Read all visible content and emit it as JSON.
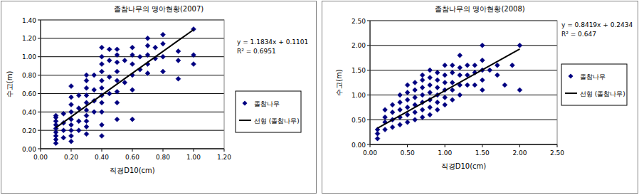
{
  "chart_data": [
    {
      "type": "scatter",
      "title": "졸참나무의 맹아현황(2007)",
      "x_label": "직경D10(cm)",
      "y_label": "수고(m)",
      "xlim": [
        0,
        1.2
      ],
      "xticks": [
        {
          "value": 0,
          "label": "0.00"
        },
        {
          "value": 0.2,
          "label": "0.20"
        },
        {
          "value": 0.4,
          "label": "0.40"
        },
        {
          "value": 0.6,
          "label": "0.60"
        },
        {
          "value": 0.8,
          "label": "0.80"
        },
        {
          "value": 1.0,
          "label": "1.00"
        },
        {
          "value": 1.2,
          "label": "1.20"
        }
      ],
      "ylim": [
        0,
        1.4
      ],
      "yticks": [
        {
          "value": 0,
          "label": "0.00"
        },
        {
          "value": 0.2,
          "label": "0.20"
        },
        {
          "value": 0.4,
          "label": "0.40"
        },
        {
          "value": 0.6,
          "label": "0.60"
        },
        {
          "value": 0.8,
          "label": "0.80"
        },
        {
          "value": 1.0,
          "label": "1.00"
        },
        {
          "value": 1.2,
          "label": "1.20"
        },
        {
          "value": 1.4,
          "label": "1.40"
        }
      ],
      "grid": true,
      "legend": "right",
      "annotations": [
        "y = 1.1834x + 0.1101",
        "R² = 0.6951"
      ],
      "series": [
        {
          "name": "졸참나무",
          "type": "scatter",
          "marker": "diamond",
          "color": "#000080",
          "x": [
            0.1,
            0.1,
            0.1,
            0.1,
            0.1,
            0.1,
            0.1,
            0.1,
            0.1,
            0.15,
            0.15,
            0.15,
            0.15,
            0.2,
            0.2,
            0.2,
            0.2,
            0.2,
            0.2,
            0.2,
            0.2,
            0.2,
            0.25,
            0.25,
            0.25,
            0.25,
            0.3,
            0.3,
            0.3,
            0.3,
            0.3,
            0.3,
            0.3,
            0.3,
            0.3,
            0.3,
            0.35,
            0.35,
            0.35,
            0.35,
            0.4,
            0.4,
            0.4,
            0.4,
            0.4,
            0.4,
            0.4,
            0.4,
            0.4,
            0.4,
            0.4,
            0.45,
            0.45,
            0.45,
            0.45,
            0.5,
            0.5,
            0.5,
            0.5,
            0.5,
            0.5,
            0.5,
            0.5,
            0.55,
            0.55,
            0.6,
            0.6,
            0.6,
            0.6,
            0.6,
            0.6,
            0.65,
            0.65,
            0.7,
            0.7,
            0.7,
            0.7,
            0.7,
            0.75,
            0.75,
            0.8,
            0.8,
            0.8,
            0.8,
            0.9,
            0.9,
            0.9,
            1.0,
            1.0,
            1.0
          ],
          "values": [
            0.06,
            0.1,
            0.14,
            0.18,
            0.22,
            0.26,
            0.3,
            0.34,
            0.36,
            0.12,
            0.2,
            0.28,
            0.38,
            0.08,
            0.14,
            0.2,
            0.26,
            0.32,
            0.4,
            0.48,
            0.56,
            0.68,
            0.2,
            0.3,
            0.44,
            0.58,
            0.16,
            0.24,
            0.3,
            0.36,
            0.42,
            0.5,
            0.58,
            0.66,
            0.74,
            0.8,
            0.4,
            0.52,
            0.64,
            0.8,
            0.14,
            0.26,
            0.4,
            0.5,
            0.58,
            0.66,
            0.74,
            0.84,
            0.92,
            1.0,
            1.1,
            0.6,
            0.78,
            0.96,
            1.08,
            0.32,
            0.5,
            0.62,
            0.74,
            0.84,
            0.94,
            1.02,
            1.08,
            0.72,
            0.96,
            0.32,
            0.64,
            0.8,
            0.92,
            1.02,
            1.1,
            0.86,
            1.0,
            0.82,
            0.92,
            1.02,
            1.12,
            1.2,
            0.98,
            1.1,
            0.84,
            1.0,
            1.14,
            1.24,
            0.76,
            0.96,
            1.06,
            0.92,
            1.02,
            1.3
          ]
        },
        {
          "name": "선형 (졸참나무)",
          "type": "line",
          "line_style": "solid",
          "color": "#000000",
          "x": [
            0.1,
            1.0
          ],
          "values": [
            0.229,
            1.294
          ]
        }
      ]
    },
    {
      "type": "scatter",
      "title": "졸참나무의 맹아현황(2008)",
      "x_label": "직경D10(cm)",
      "y_label": "수고(m)",
      "xlim": [
        0,
        2.5
      ],
      "xticks": [
        {
          "value": 0,
          "label": "0.00"
        },
        {
          "value": 0.5,
          "label": "0.50"
        },
        {
          "value": 1.0,
          "label": "1.00"
        },
        {
          "value": 1.5,
          "label": "1.50"
        },
        {
          "value": 2.0,
          "label": "2.00"
        },
        {
          "value": 2.5,
          "label": "2.50"
        }
      ],
      "ylim": [
        0,
        2.5
      ],
      "yticks": [
        {
          "value": 0,
          "label": "0.00"
        },
        {
          "value": 0.5,
          "label": "0.50"
        },
        {
          "value": 1.0,
          "label": "1.00"
        },
        {
          "value": 1.5,
          "label": "1.50"
        },
        {
          "value": 2.0,
          "label": "2.00"
        },
        {
          "value": 2.5,
          "label": "2.50"
        }
      ],
      "grid": true,
      "legend": "right",
      "annotations": [
        "y = 0.8419x + 0.2434",
        "R² = 0.647"
      ],
      "series": [
        {
          "name": "졸참나무",
          "type": "scatter",
          "marker": "diamond",
          "color": "#000080",
          "x": [
            0.1,
            0.1,
            0.1,
            0.2,
            0.2,
            0.2,
            0.2,
            0.3,
            0.3,
            0.3,
            0.3,
            0.4,
            0.4,
            0.4,
            0.4,
            0.4,
            0.5,
            0.5,
            0.5,
            0.5,
            0.5,
            0.5,
            0.6,
            0.6,
            0.6,
            0.6,
            0.6,
            0.6,
            0.7,
            0.7,
            0.7,
            0.7,
            0.7,
            0.7,
            0.7,
            0.8,
            0.8,
            0.8,
            0.8,
            0.8,
            0.8,
            0.8,
            0.9,
            0.9,
            0.9,
            0.9,
            0.9,
            0.9,
            1.0,
            1.0,
            1.0,
            1.0,
            1.0,
            1.0,
            1.1,
            1.1,
            1.1,
            1.1,
            1.1,
            1.2,
            1.2,
            1.2,
            1.2,
            1.2,
            1.3,
            1.3,
            1.3,
            1.4,
            1.4,
            1.4,
            1.5,
            1.5,
            1.5,
            1.5,
            1.5,
            1.6,
            1.7,
            1.7,
            1.8,
            1.9,
            2.0,
            2.0
          ],
          "values": [
            0.12,
            0.22,
            0.3,
            0.3,
            0.45,
            0.55,
            0.7,
            0.35,
            0.5,
            0.65,
            0.8,
            0.4,
            0.55,
            0.7,
            0.85,
            1.0,
            0.45,
            0.6,
            0.75,
            0.9,
            1.05,
            1.2,
            0.5,
            0.65,
            0.8,
            0.95,
            1.1,
            1.25,
            0.55,
            0.7,
            0.85,
            1.0,
            1.15,
            1.3,
            1.4,
            0.6,
            0.75,
            0.9,
            1.05,
            1.2,
            1.35,
            1.5,
            0.7,
            0.85,
            1.0,
            1.15,
            1.3,
            1.45,
            0.8,
            0.95,
            1.1,
            1.25,
            1.4,
            1.6,
            0.9,
            1.1,
            1.25,
            1.45,
            1.6,
            1.0,
            1.2,
            1.4,
            1.55,
            1.8,
            1.2,
            1.4,
            1.6,
            1.2,
            1.45,
            1.6,
            1.1,
            1.3,
            1.5,
            1.7,
            2.0,
            1.5,
            1.4,
            1.6,
            1.2,
            1.6,
            1.1,
            2.0
          ]
        },
        {
          "name": "선형 (졸참나무)",
          "type": "line",
          "line_style": "solid",
          "color": "#000000",
          "x": [
            0.1,
            2.0
          ],
          "values": [
            0.328,
            1.927
          ]
        }
      ]
    }
  ]
}
